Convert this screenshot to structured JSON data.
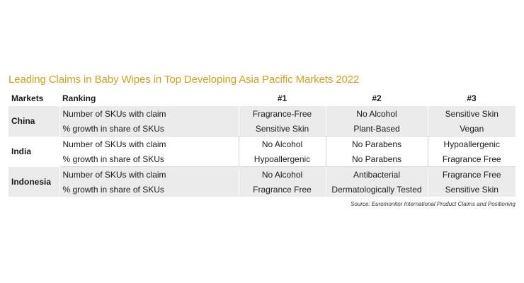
{
  "title": "Leading Claims in Baby Wipes in Top Developing Asia Pacific Markets 2022",
  "table": {
    "headers": {
      "markets": "Markets",
      "ranking": "Ranking",
      "rank1": "#1",
      "rank2": "#2",
      "rank3": "#3"
    },
    "groups": [
      {
        "market": "China",
        "rows": [
          {
            "metric": "Number of SKUs with claim",
            "values": [
              "Fragrance-Free",
              "No Alcohol",
              "Sensitive Skin"
            ]
          },
          {
            "metric": "% growth in share of SKUs",
            "values": [
              "Sensitive Skin",
              "Plant-Based",
              "Vegan"
            ]
          }
        ]
      },
      {
        "market": "India",
        "rows": [
          {
            "metric": "Number of SKUs with claim",
            "values": [
              "No Alcohol",
              "No Parabens",
              "Hypoallergenic"
            ]
          },
          {
            "metric": "% growth in share of SKUs",
            "values": [
              "Hypoallergenic",
              "No Parabens",
              "Fragrance Free"
            ]
          }
        ]
      },
      {
        "market": "Indonesia",
        "rows": [
          {
            "metric": "Number of SKUs with claim",
            "values": [
              "No Alcohol",
              "Antibacterial",
              "Fragrance Free"
            ]
          },
          {
            "metric": "% growth in share of SKUs",
            "values": [
              "Fragrance Free",
              "Dermatologically Tested",
              "Sensitive Skin"
            ]
          }
        ]
      }
    ]
  },
  "source": "Source: Euromonitor International Product Claims and Positioning",
  "colors": {
    "title": "#c9a227",
    "shade": "#ebebeb",
    "text": "#1a1a1a"
  }
}
